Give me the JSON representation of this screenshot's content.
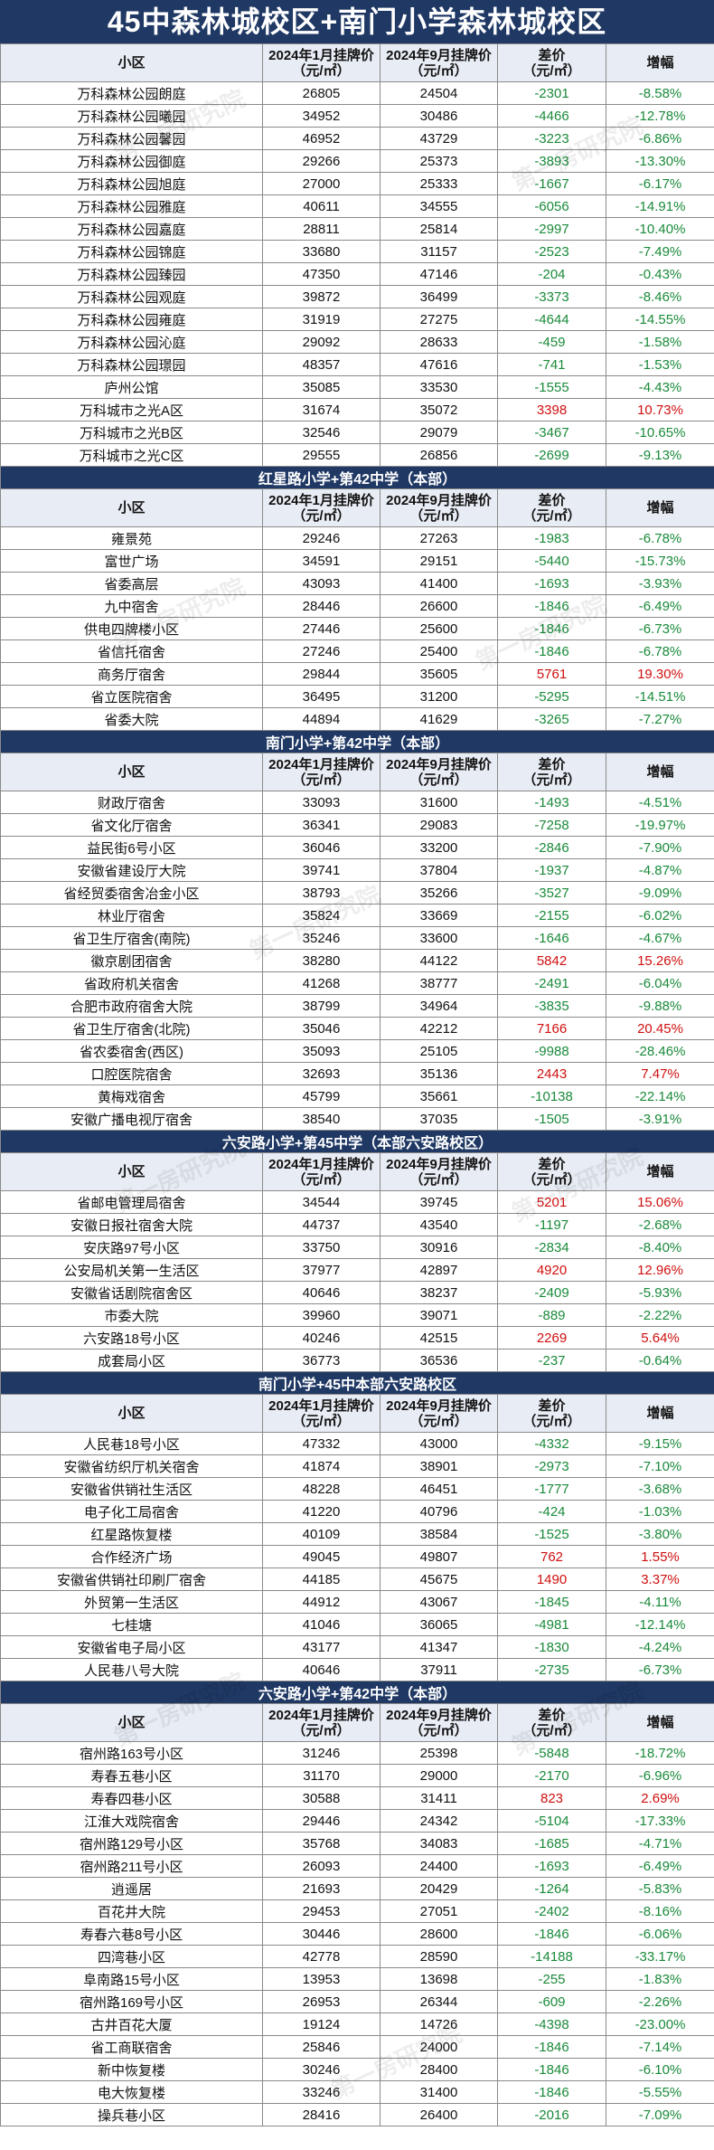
{
  "title": "45中森林城校区+南门小学森林城校区",
  "headers": {
    "name": "小区",
    "jan": "2024年1月挂牌价\n（元/㎡）",
    "sep": "2024年9月挂牌价\n（元/㎡）",
    "diff": "差价\n（元/㎡）",
    "pct": "增幅"
  },
  "watermark": "第一房研究院",
  "colors": {
    "header_bg": "#1f3864",
    "decrease": "#1a8a3a",
    "increase": "#d01010"
  },
  "sections": [
    {
      "name": "45中森林城校区+南门小学森林城校区",
      "rows": [
        [
          "万科森林公园朗庭",
          "26805",
          "24504",
          "-2301",
          "-8.58%"
        ],
        [
          "万科森林公园曦园",
          "34952",
          "30486",
          "-4466",
          "-12.78%"
        ],
        [
          "万科森林公园馨园",
          "46952",
          "43729",
          "-3223",
          "-6.86%"
        ],
        [
          "万科森林公园御庭",
          "29266",
          "25373",
          "-3893",
          "-13.30%"
        ],
        [
          "万科森林公园旭庭",
          "27000",
          "25333",
          "-1667",
          "-6.17%"
        ],
        [
          "万科森林公园雅庭",
          "40611",
          "34555",
          "-6056",
          "-14.91%"
        ],
        [
          "万科森林公园嘉庭",
          "28811",
          "25814",
          "-2997",
          "-10.40%"
        ],
        [
          "万科森林公园锦庭",
          "33680",
          "31157",
          "-2523",
          "-7.49%"
        ],
        [
          "万科森林公园臻园",
          "47350",
          "47146",
          "-204",
          "-0.43%"
        ],
        [
          "万科森林公园观庭",
          "39872",
          "36499",
          "-3373",
          "-8.46%"
        ],
        [
          "万科森林公园雍庭",
          "31919",
          "27275",
          "-4644",
          "-14.55%"
        ],
        [
          "万科森林公园沁庭",
          "29092",
          "28633",
          "-459",
          "-1.58%"
        ],
        [
          "万科森林公园璟园",
          "48357",
          "47616",
          "-741",
          "-1.53%"
        ],
        [
          "庐州公馆",
          "35085",
          "33530",
          "-1555",
          "-4.43%"
        ],
        [
          "万科城市之光A区",
          "31674",
          "35072",
          "3398",
          "10.73%"
        ],
        [
          "万科城市之光B区",
          "32546",
          "29079",
          "-3467",
          "-10.65%"
        ],
        [
          "万科城市之光C区",
          "29555",
          "26856",
          "-2699",
          "-9.13%"
        ]
      ]
    },
    {
      "name": "红星路小学+第42中学（本部）",
      "rows": [
        [
          "雍景苑",
          "29246",
          "27263",
          "-1983",
          "-6.78%"
        ],
        [
          "富世广场",
          "34591",
          "29151",
          "-5440",
          "-15.73%"
        ],
        [
          "省委高层",
          "43093",
          "41400",
          "-1693",
          "-3.93%"
        ],
        [
          "九中宿舍",
          "28446",
          "26600",
          "-1846",
          "-6.49%"
        ],
        [
          "供电四牌楼小区",
          "27446",
          "25600",
          "-1846",
          "-6.73%"
        ],
        [
          "省信托宿舍",
          "27246",
          "25400",
          "-1846",
          "-6.78%"
        ],
        [
          "商务厅宿舍",
          "29844",
          "35605",
          "5761",
          "19.30%"
        ],
        [
          "省立医院宿舍",
          "36495",
          "31200",
          "-5295",
          "-14.51%"
        ],
        [
          "省委大院",
          "44894",
          "41629",
          "-3265",
          "-7.27%"
        ]
      ]
    },
    {
      "name": "南门小学+第42中学（本部）",
      "rows": [
        [
          "财政厅宿舍",
          "33093",
          "31600",
          "-1493",
          "-4.51%"
        ],
        [
          "省文化厅宿舍",
          "36341",
          "29083",
          "-7258",
          "-19.97%"
        ],
        [
          "益民街6号小区",
          "36046",
          "33200",
          "-2846",
          "-7.90%"
        ],
        [
          "安徽省建设厅大院",
          "39741",
          "37804",
          "-1937",
          "-4.87%"
        ],
        [
          "省经贸委宿舍冶金小区",
          "38793",
          "35266",
          "-3527",
          "-9.09%"
        ],
        [
          "林业厅宿舍",
          "35824",
          "33669",
          "-2155",
          "-6.02%"
        ],
        [
          "省卫生厅宿舍(南院)",
          "35246",
          "33600",
          "-1646",
          "-4.67%"
        ],
        [
          "徽京剧团宿舍",
          "38280",
          "44122",
          "5842",
          "15.26%"
        ],
        [
          "省政府机关宿舍",
          "41268",
          "38777",
          "-2491",
          "-6.04%"
        ],
        [
          "合肥市政府宿舍大院",
          "38799",
          "34964",
          "-3835",
          "-9.88%"
        ],
        [
          "省卫生厅宿舍(北院)",
          "35046",
          "42212",
          "7166",
          "20.45%"
        ],
        [
          "省农委宿舍(西区)",
          "35093",
          "25105",
          "-9988",
          "-28.46%"
        ],
        [
          "口腔医院宿舍",
          "32693",
          "35136",
          "2443",
          "7.47%"
        ],
        [
          "黄梅戏宿舍",
          "45799",
          "35661",
          "-10138",
          "-22.14%"
        ],
        [
          "安徽广播电视厅宿舍",
          "38540",
          "37035",
          "-1505",
          "-3.91%"
        ]
      ]
    },
    {
      "name": "六安路小学+第45中学（本部六安路校区）",
      "rows": [
        [
          "省邮电管理局宿舍",
          "34544",
          "39745",
          "5201",
          "15.06%"
        ],
        [
          "安徽日报社宿舍大院",
          "44737",
          "43540",
          "-1197",
          "-2.68%"
        ],
        [
          "安庆路97号小区",
          "33750",
          "30916",
          "-2834",
          "-8.40%"
        ],
        [
          "公安局机关第一生活区",
          "37977",
          "42897",
          "4920",
          "12.96%"
        ],
        [
          "安徽省话剧院宿舍区",
          "40646",
          "38237",
          "-2409",
          "-5.93%"
        ],
        [
          "市委大院",
          "39960",
          "39071",
          "-889",
          "-2.22%"
        ],
        [
          "六安路18号小区",
          "40246",
          "42515",
          "2269",
          "5.64%"
        ],
        [
          "成套局小区",
          "36773",
          "36536",
          "-237",
          "-0.64%"
        ]
      ]
    },
    {
      "name": "南门小学+45中本部六安路校区",
      "rows": [
        [
          "人民巷18号小区",
          "47332",
          "43000",
          "-4332",
          "-9.15%"
        ],
        [
          "安徽省纺织厅机关宿舍",
          "41874",
          "38901",
          "-2973",
          "-7.10%"
        ],
        [
          "安徽省供销社生活区",
          "48228",
          "46451",
          "-1777",
          "-3.68%"
        ],
        [
          "电子化工局宿舍",
          "41220",
          "40796",
          "-424",
          "-1.03%"
        ],
        [
          "红星路恢复楼",
          "40109",
          "38584",
          "-1525",
          "-3.80%"
        ],
        [
          "合作经济广场",
          "49045",
          "49807",
          "762",
          "1.55%"
        ],
        [
          "安徽省供销社印刷厂宿舍",
          "44185",
          "45675",
          "1490",
          "3.37%"
        ],
        [
          "外贸第一生活区",
          "44912",
          "43067",
          "-1845",
          "-4.11%"
        ],
        [
          "七桂塘",
          "41046",
          "36065",
          "-4981",
          "-12.14%"
        ],
        [
          "安徽省电子局小区",
          "43177",
          "41347",
          "-1830",
          "-4.24%"
        ],
        [
          "人民巷八号大院",
          "40646",
          "37911",
          "-2735",
          "-6.73%"
        ]
      ]
    },
    {
      "name": "六安路小学+第42中学（本部）",
      "rows": [
        [
          "宿州路163号小区",
          "31246",
          "25398",
          "-5848",
          "-18.72%"
        ],
        [
          "寿春五巷小区",
          "31170",
          "29000",
          "-2170",
          "-6.96%"
        ],
        [
          "寿春四巷小区",
          "30588",
          "31411",
          "823",
          "2.69%"
        ],
        [
          "江淮大戏院宿舍",
          "29446",
          "24342",
          "-5104",
          "-17.33%"
        ],
        [
          "宿州路129号小区",
          "35768",
          "34083",
          "-1685",
          "-4.71%"
        ],
        [
          "宿州路211号小区",
          "26093",
          "24400",
          "-1693",
          "-6.49%"
        ],
        [
          "逍遥居",
          "21693",
          "20429",
          "-1264",
          "-5.83%"
        ],
        [
          "百花井大院",
          "29453",
          "27051",
          "-2402",
          "-8.16%"
        ],
        [
          "寿春六巷8号小区",
          "30446",
          "28600",
          "-1846",
          "-6.06%"
        ],
        [
          "四湾巷小区",
          "42778",
          "28590",
          "-14188",
          "-33.17%"
        ],
        [
          "阜南路15号小区",
          "13953",
          "13698",
          "-255",
          "-1.83%"
        ],
        [
          "宿州路169号小区",
          "26953",
          "26344",
          "-609",
          "-2.26%"
        ],
        [
          "古井百花大厦",
          "19124",
          "14726",
          "-4398",
          "-23.00%"
        ],
        [
          "省工商联宿舍",
          "25846",
          "24000",
          "-1846",
          "-7.14%"
        ],
        [
          "新中恢复楼",
          "30246",
          "28400",
          "-1846",
          "-6.10%"
        ],
        [
          "电大恢复楼",
          "33246",
          "31400",
          "-1846",
          "-5.55%"
        ],
        [
          "操兵巷小区",
          "28416",
          "26400",
          "-2016",
          "-7.09%"
        ]
      ]
    }
  ]
}
